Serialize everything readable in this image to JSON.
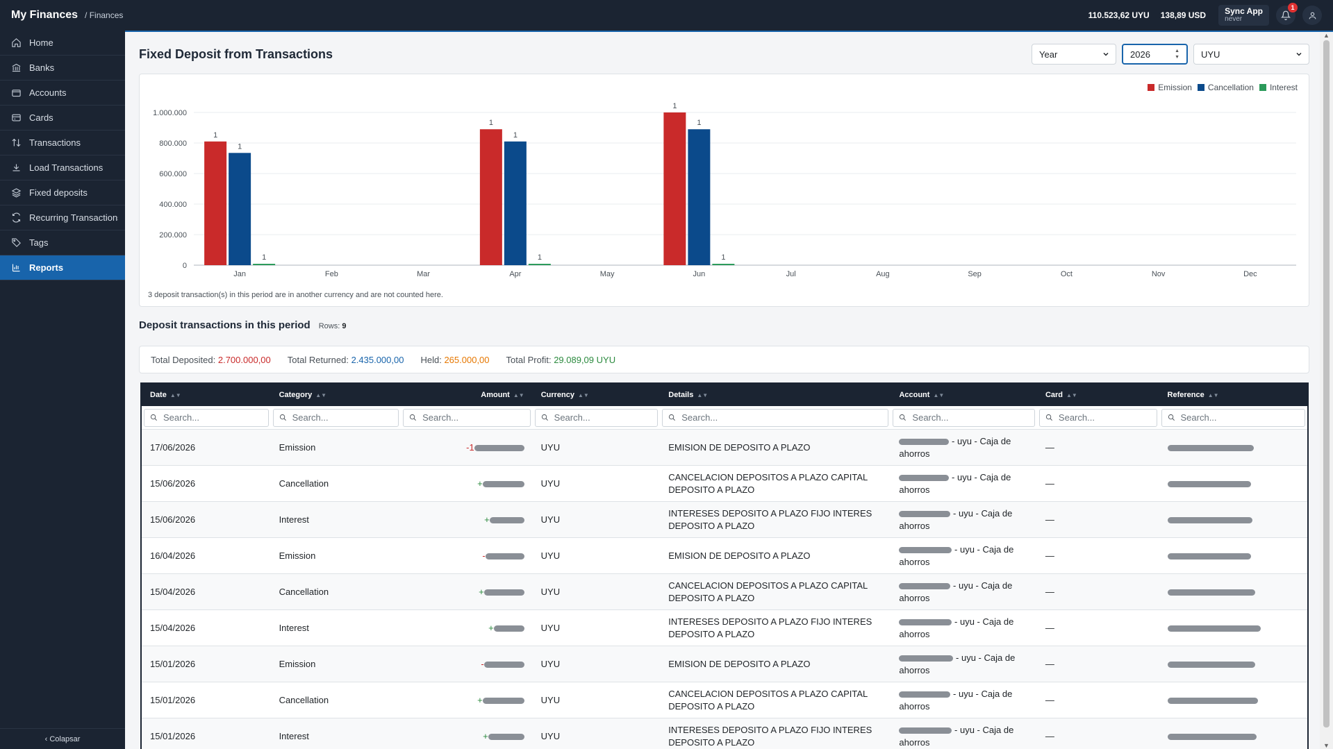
{
  "app": {
    "brand": "My Finances",
    "breadcrumb": "/ Finances"
  },
  "topbar": {
    "balance_uyu": "110.523,62 UYU",
    "balance_usd": "138,89 USD",
    "sync_title": "Sync App",
    "sync_status": "never",
    "notif_count": "1"
  },
  "sidebar": {
    "items": [
      {
        "label": "Home",
        "icon": "home-icon"
      },
      {
        "label": "Banks",
        "icon": "bank-icon"
      },
      {
        "label": "Accounts",
        "icon": "wallet-icon"
      },
      {
        "label": "Cards",
        "icon": "credit-card-icon"
      },
      {
        "label": "Transactions",
        "icon": "arrows-updown-icon"
      },
      {
        "label": "Load Transactions",
        "icon": "download-icon"
      },
      {
        "label": "Fixed deposits",
        "icon": "layers-icon"
      },
      {
        "label": "Recurring Transactions",
        "icon": "refresh-icon"
      },
      {
        "label": "Tags",
        "icon": "tag-icon"
      },
      {
        "label": "Reports",
        "icon": "bar-chart-icon"
      }
    ],
    "collapse_label": "‹ Colapsar"
  },
  "page": {
    "title": "Fixed Deposit from Transactions",
    "period_select": "Year",
    "year_value": "2026",
    "currency_select": "UYU"
  },
  "chart_data": {
    "type": "bar",
    "categories": [
      "Jan",
      "Feb",
      "Mar",
      "Apr",
      "May",
      "Jun",
      "Jul",
      "Aug",
      "Sep",
      "Oct",
      "Nov",
      "Dec"
    ],
    "series": [
      {
        "name": "Emission",
        "color": "#c92a2a",
        "values": [
          810000,
          0,
          0,
          890000,
          0,
          1000000,
          0,
          0,
          0,
          0,
          0,
          0
        ],
        "labels": [
          "1",
          "",
          "",
          "1",
          "",
          "1",
          "",
          "",
          "",
          "",
          "",
          ""
        ]
      },
      {
        "name": "Cancellation",
        "color": "#0b4a8b",
        "values": [
          735000,
          0,
          0,
          810000,
          0,
          890000,
          0,
          0,
          0,
          0,
          0,
          0
        ],
        "labels": [
          "1",
          "",
          "",
          "1",
          "",
          "1",
          "",
          "",
          "",
          "",
          "",
          ""
        ]
      },
      {
        "name": "Interest",
        "color": "#2b9a5a",
        "values": [
          9000,
          0,
          0,
          9000,
          0,
          9000,
          0,
          0,
          0,
          0,
          0,
          0
        ],
        "labels": [
          "1",
          "",
          "",
          "1",
          "",
          "1",
          "",
          "",
          "",
          "",
          "",
          ""
        ]
      }
    ],
    "yticks": [
      "0",
      "200.000",
      "400.000",
      "600.000",
      "800.000",
      "1.000.000"
    ],
    "ylim": [
      0,
      1000000
    ],
    "legend": "top-right",
    "grid": true,
    "note": "3 deposit transaction(s) in this period are in another currency and are not counted here."
  },
  "section": {
    "title": "Deposit transactions in this period",
    "rows_label": "Rows:",
    "rows_count": "9"
  },
  "totals": {
    "deposited_label": "Total Deposited:",
    "deposited": "2.700.000,00",
    "returned_label": "Total Returned:",
    "returned": "2.435.000,00",
    "held_label": "Held:",
    "held": "265.000,00",
    "profit_label": "Total Profit:",
    "profit": "29.089,09 UYU"
  },
  "table": {
    "columns": [
      "Date",
      "Category",
      "Amount",
      "Currency",
      "Details",
      "Account",
      "Card",
      "Reference"
    ],
    "search_placeholder": "Search...",
    "rows": [
      {
        "date": "17/06/2026",
        "category": "Emission",
        "sign": "-1",
        "currency": "UYU",
        "details": "EMISION DE DEPOSITO A PLAZO",
        "account": "- uyu - Caja de ahorros",
        "card": "—"
      },
      {
        "date": "15/06/2026",
        "category": "Cancellation",
        "sign": "+",
        "currency": "UYU",
        "details": "CANCELACION DEPOSITOS A PLAZO CAPITAL DEPOSITO A PLAZO",
        "account": "- uyu - Caja de ahorros",
        "card": "—"
      },
      {
        "date": "15/06/2026",
        "category": "Interest",
        "sign": "+",
        "currency": "UYU",
        "details": "INTERESES DEPOSITO A PLAZO FIJO INTERES DEPOSITO A PLAZO",
        "account": "- uyu - Caja de ahorros",
        "card": "—"
      },
      {
        "date": "16/04/2026",
        "category": "Emission",
        "sign": "-",
        "currency": "UYU",
        "details": "EMISION DE DEPOSITO A PLAZO",
        "account": "- uyu - Caja de ahorros",
        "card": "—"
      },
      {
        "date": "15/04/2026",
        "category": "Cancellation",
        "sign": "+",
        "currency": "UYU",
        "details": "CANCELACION DEPOSITOS A PLAZO CAPITAL DEPOSITO A PLAZO",
        "account": "- uyu - Caja de ahorros",
        "card": "—"
      },
      {
        "date": "15/04/2026",
        "category": "Interest",
        "sign": "+",
        "currency": "UYU",
        "details": "INTERESES DEPOSITO A PLAZO FIJO INTERES DEPOSITO A PLAZO",
        "account": "- uyu - Caja de ahorros",
        "card": "—"
      },
      {
        "date": "15/01/2026",
        "category": "Emission",
        "sign": "-",
        "currency": "UYU",
        "details": "EMISION DE DEPOSITO A PLAZO",
        "account": "- uyu - Caja de ahorros",
        "card": "—"
      },
      {
        "date": "15/01/2026",
        "category": "Cancellation",
        "sign": "+",
        "currency": "UYU",
        "details": "CANCELACION DEPOSITOS A PLAZO CAPITAL DEPOSITO A PLAZO",
        "account": "- uyu - Caja de ahorros",
        "card": "—"
      },
      {
        "date": "15/01/2026",
        "category": "Interest",
        "sign": "+",
        "currency": "UYU",
        "details": "INTERESES DEPOSITO A PLAZO FIJO INTERES DEPOSITO A PLAZO",
        "account": "- uyu - Caja de ahorros",
        "card": "—"
      }
    ]
  }
}
